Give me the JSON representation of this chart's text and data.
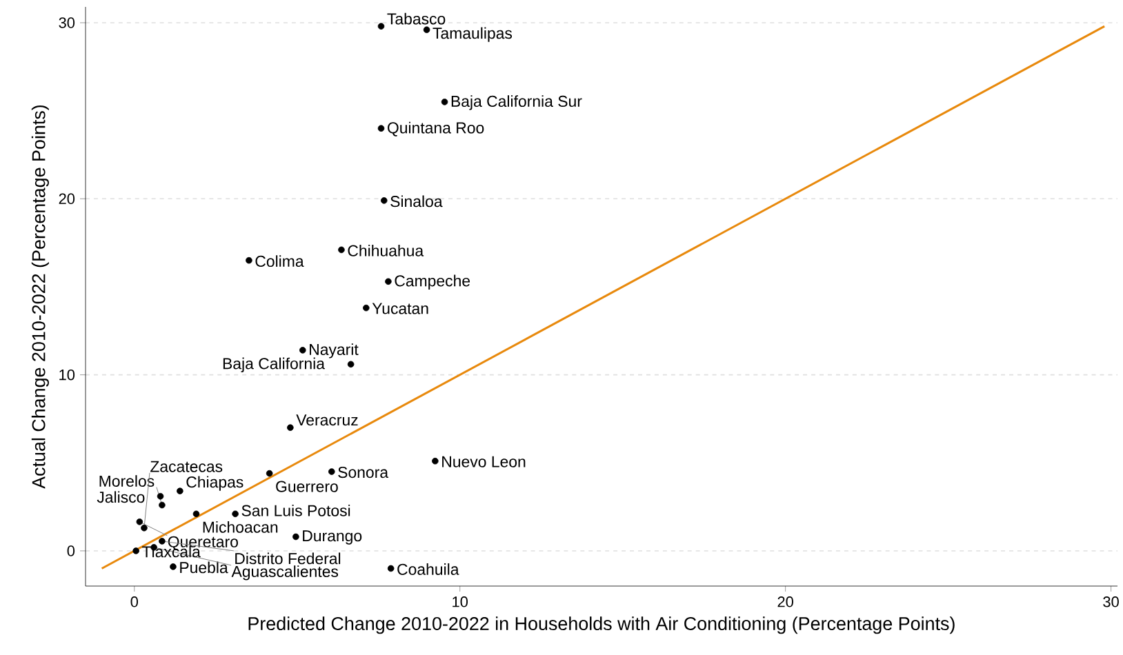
{
  "chart_data": {
    "type": "scatter",
    "xlabel": "Predicted Change 2010-2022 in Households with Air Conditioning (Percentage Points)",
    "ylabel": "Actual Change 2010-2022 (Percentage Points)",
    "xlim": [
      -1.5,
      30.2
    ],
    "ylim": [
      -2,
      30.9
    ],
    "xticks": [
      0,
      10,
      20,
      30
    ],
    "yticks": [
      0,
      10,
      20,
      30
    ],
    "grid": "y",
    "series": [
      {
        "color": "#000000",
        "marker": "circle",
        "x": [
          7.58,
          8.98,
          9.53,
          7.58,
          7.67,
          3.52,
          6.36,
          7.8,
          7.12,
          5.17,
          6.65,
          4.79,
          9.24,
          4.15,
          6.06,
          1.4,
          0.8,
          0.85,
          1.9,
          3.1,
          4.96,
          7.88,
          1.19,
          0.16,
          0.3,
          0.85,
          0.6,
          0.05
        ],
        "values": [
          29.8,
          29.6,
          25.5,
          24.0,
          19.9,
          16.5,
          17.1,
          15.3,
          13.8,
          11.4,
          10.6,
          7.0,
          5.1,
          4.4,
          4.5,
          3.4,
          3.1,
          2.6,
          2.1,
          2.1,
          0.8,
          -1.0,
          -0.9,
          1.65,
          1.3,
          0.55,
          0.2,
          0.0
        ]
      },
      {
        "type": "line",
        "color": "#e8890c",
        "line_style": "solid",
        "marker": "none",
        "x": [
          -1,
          29.8
        ],
        "values": [
          -1,
          29.8
        ]
      }
    ],
    "annotations": [
      {
        "text": "Tabasco",
        "x": 7.58,
        "y": 29.8
      },
      {
        "text": "Tamaulipas",
        "x": 8.98,
        "y": 29.6
      },
      {
        "text": "Baja California Sur",
        "x": 9.53,
        "y": 25.5
      },
      {
        "text": "Quintana Roo",
        "x": 7.58,
        "y": 24.0
      },
      {
        "text": "Sinaloa",
        "x": 7.67,
        "y": 19.9
      },
      {
        "text": "Colima",
        "x": 3.52,
        "y": 16.5
      },
      {
        "text": "Chihuahua",
        "x": 6.36,
        "y": 17.1
      },
      {
        "text": "Campeche",
        "x": 7.8,
        "y": 15.3
      },
      {
        "text": "Yucatan",
        "x": 7.12,
        "y": 13.8
      },
      {
        "text": "Nayarit",
        "x": 5.17,
        "y": 11.4
      },
      {
        "text": "Baja California",
        "x": 6.65,
        "y": 10.6
      },
      {
        "text": "Veracruz",
        "x": 4.79,
        "y": 7.0
      },
      {
        "text": "Nuevo Leon",
        "x": 9.24,
        "y": 5.1
      },
      {
        "text": "Guerrero",
        "x": 4.15,
        "y": 4.4
      },
      {
        "text": "Sonora",
        "x": 6.06,
        "y": 4.5
      },
      {
        "text": "Chiapas",
        "x": 1.4,
        "y": 3.4
      },
      {
        "text": "Jalisco",
        "x": 0.8,
        "y": 3.1
      },
      {
        "text": "Morelos",
        "x": 0.85,
        "y": 2.6
      },
      {
        "text": "Michoacan",
        "x": 1.9,
        "y": 2.1
      },
      {
        "text": "San Luis Potosi",
        "x": 3.1,
        "y": 2.1
      },
      {
        "text": "Durango",
        "x": 4.96,
        "y": 0.8
      },
      {
        "text": "Coahuila",
        "x": 7.88,
        "y": -1.0
      },
      {
        "text": "Puebla",
        "x": 1.19,
        "y": -0.9
      },
      {
        "text": "Queretaro",
        "x": 0.16,
        "y": 1.65
      },
      {
        "text": "Zacatecas",
        "x": 0.3,
        "y": 1.3
      },
      {
        "text": "Distrito Federal",
        "x": 0.85,
        "y": 0.55
      },
      {
        "text": "Aguascalientes",
        "x": 0.6,
        "y": 0.2
      },
      {
        "text": "Tlaxcala",
        "x": 0.05,
        "y": 0.0
      }
    ]
  }
}
